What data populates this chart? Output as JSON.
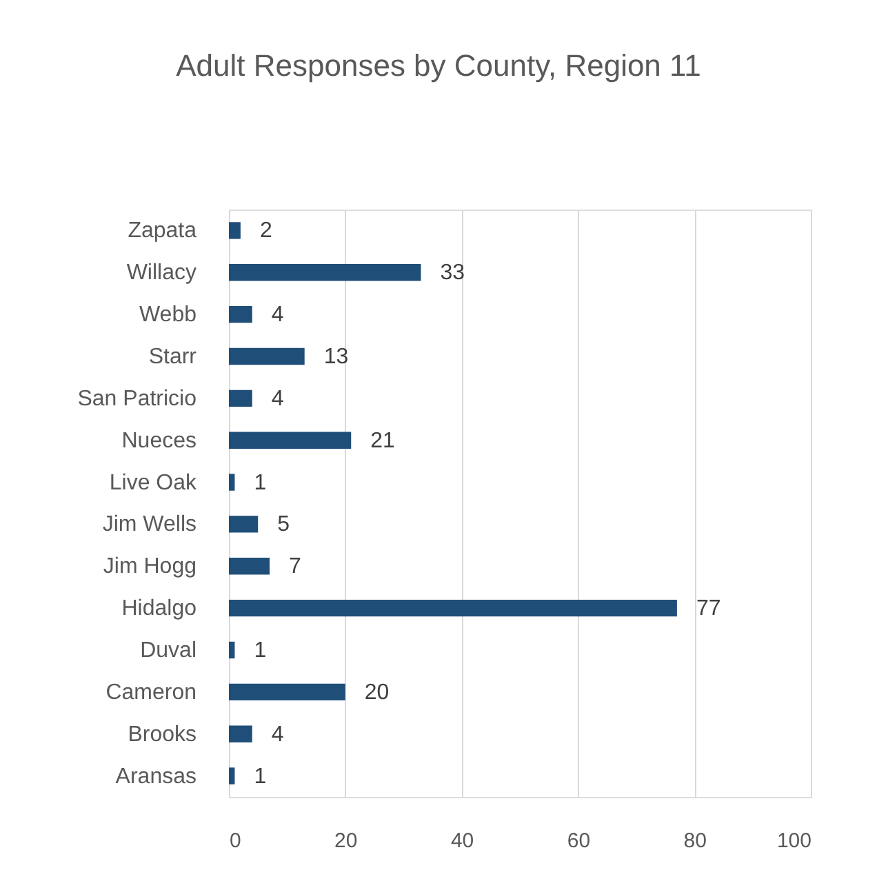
{
  "chart_data": {
    "type": "bar",
    "title": "Adult Responses by County, Region 11",
    "orientation": "horizontal",
    "categories": [
      "Zapata",
      "Willacy",
      "Webb",
      "Starr",
      "San Patricio",
      "Nueces",
      "Live Oak",
      "Jim Wells",
      "Jim Hogg",
      "Hidalgo",
      "Duval",
      "Cameron",
      "Brooks",
      "Aransas"
    ],
    "values": [
      2,
      33,
      4,
      13,
      4,
      21,
      1,
      5,
      7,
      77,
      1,
      20,
      4,
      1
    ],
    "color": "#1f4e79",
    "xlim": [
      0,
      100
    ],
    "xticks": [
      0,
      20,
      40,
      60,
      80,
      100
    ],
    "grid": "x",
    "data_labels": true
  }
}
